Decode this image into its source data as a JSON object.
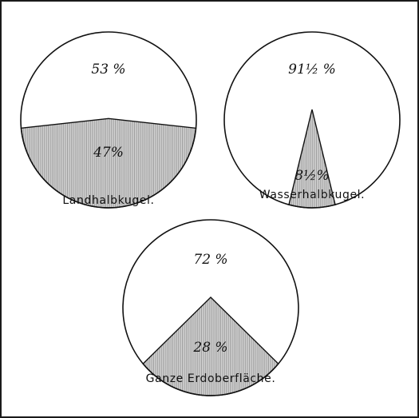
{
  "chart_data": [
    {
      "type": "pie",
      "caption": "Landhalbkugel.",
      "slices": [
        {
          "label": "53 %",
          "value": 53,
          "kind": "water"
        },
        {
          "label": "47%",
          "value": 47,
          "kind": "land"
        }
      ]
    },
    {
      "type": "pie",
      "caption": "Wasserhalbkugel.",
      "slices": [
        {
          "label": "91½ %",
          "value": 91.5,
          "kind": "water"
        },
        {
          "label": "8½%",
          "value": 8.5,
          "kind": "land"
        }
      ]
    },
    {
      "type": "pie",
      "caption": "Ganze Erdoberfläche.",
      "slices": [
        {
          "label": "72 %",
          "value": 72,
          "kind": "water"
        },
        {
          "label": "28 %",
          "value": 28,
          "kind": "land"
        }
      ]
    }
  ],
  "colors": {
    "line": "#111111",
    "hatch_bg": "#d6d6d6",
    "hatch_line": "#8a8a8a",
    "water": "#ffffff"
  }
}
